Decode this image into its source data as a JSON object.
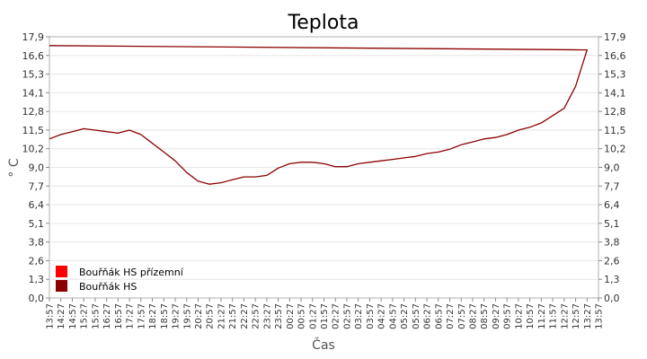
{
  "chart_data": {
    "type": "line",
    "title": "Teplota",
    "xlabel": "Čas",
    "ylabel": "° C",
    "ylim": [
      0,
      17.9
    ],
    "yticks": [
      "0,0",
      "1,3",
      "2,6",
      "3,8",
      "5,1",
      "6,4",
      "7,7",
      "9,0",
      "10,2",
      "11,5",
      "12,8",
      "14,1",
      "15,3",
      "16,6",
      "17,9"
    ],
    "x_ticks": [
      "13:57",
      "14:27",
      "14:57",
      "15:27",
      "15:57",
      "16:27",
      "16:57",
      "17:27",
      "17:57",
      "18:27",
      "18:57",
      "19:27",
      "19:57",
      "20:27",
      "20:57",
      "21:27",
      "21:57",
      "22:27",
      "22:57",
      "23:27",
      "23:57",
      "00:27",
      "00:57",
      "01:27",
      "01:57",
      "02:27",
      "02:57",
      "03:27",
      "03:57",
      "04:27",
      "04:57",
      "05:27",
      "05:57",
      "06:27",
      "06:57",
      "07:27",
      "07:57",
      "08:27",
      "08:57",
      "09:27",
      "09:57",
      "10:27",
      "10:57",
      "11:27",
      "11:57",
      "12:27",
      "12:57",
      "13:27",
      "13:57"
    ],
    "grid": true,
    "legend_position": "bottom-left",
    "series": [
      {
        "name": "Bouřňák HS přízemní",
        "color": "#ff0000",
        "x": [],
        "values": []
      },
      {
        "name": "Bouřňák HS",
        "color": "#8b0000",
        "x": [
          "13:57",
          "14:27",
          "14:57",
          "15:27",
          "15:57",
          "16:27",
          "16:57",
          "17:27",
          "17:57",
          "18:27",
          "18:57",
          "19:27",
          "19:57",
          "20:27",
          "20:57",
          "21:27",
          "21:57",
          "22:27",
          "22:57",
          "23:27",
          "23:57",
          "00:27",
          "00:57",
          "01:27",
          "01:57",
          "02:27",
          "02:57",
          "03:27",
          "03:57",
          "04:27",
          "04:57",
          "05:27",
          "05:57",
          "06:27",
          "06:57",
          "07:27",
          "07:57",
          "08:27",
          "08:57",
          "09:27",
          "09:57",
          "10:27",
          "10:57",
          "11:27",
          "11:57",
          "12:27",
          "12:57",
          "13:27",
          "13:57"
        ],
        "values": [
          10.9,
          11.2,
          11.4,
          11.6,
          11.5,
          11.4,
          11.3,
          11.5,
          11.2,
          10.6,
          10.0,
          9.4,
          8.6,
          8.0,
          7.8,
          7.9,
          8.1,
          8.3,
          8.3,
          8.4,
          8.9,
          9.2,
          9.3,
          9.3,
          9.2,
          9.0,
          9.0,
          9.2,
          9.3,
          9.4,
          9.5,
          9.6,
          9.7,
          9.9,
          10.0,
          10.2,
          10.5,
          10.7,
          10.9,
          11.0,
          11.2,
          11.5,
          11.7,
          12.0,
          12.5,
          13.0,
          14.5,
          17.0,
          17.3
        ]
      }
    ]
  }
}
